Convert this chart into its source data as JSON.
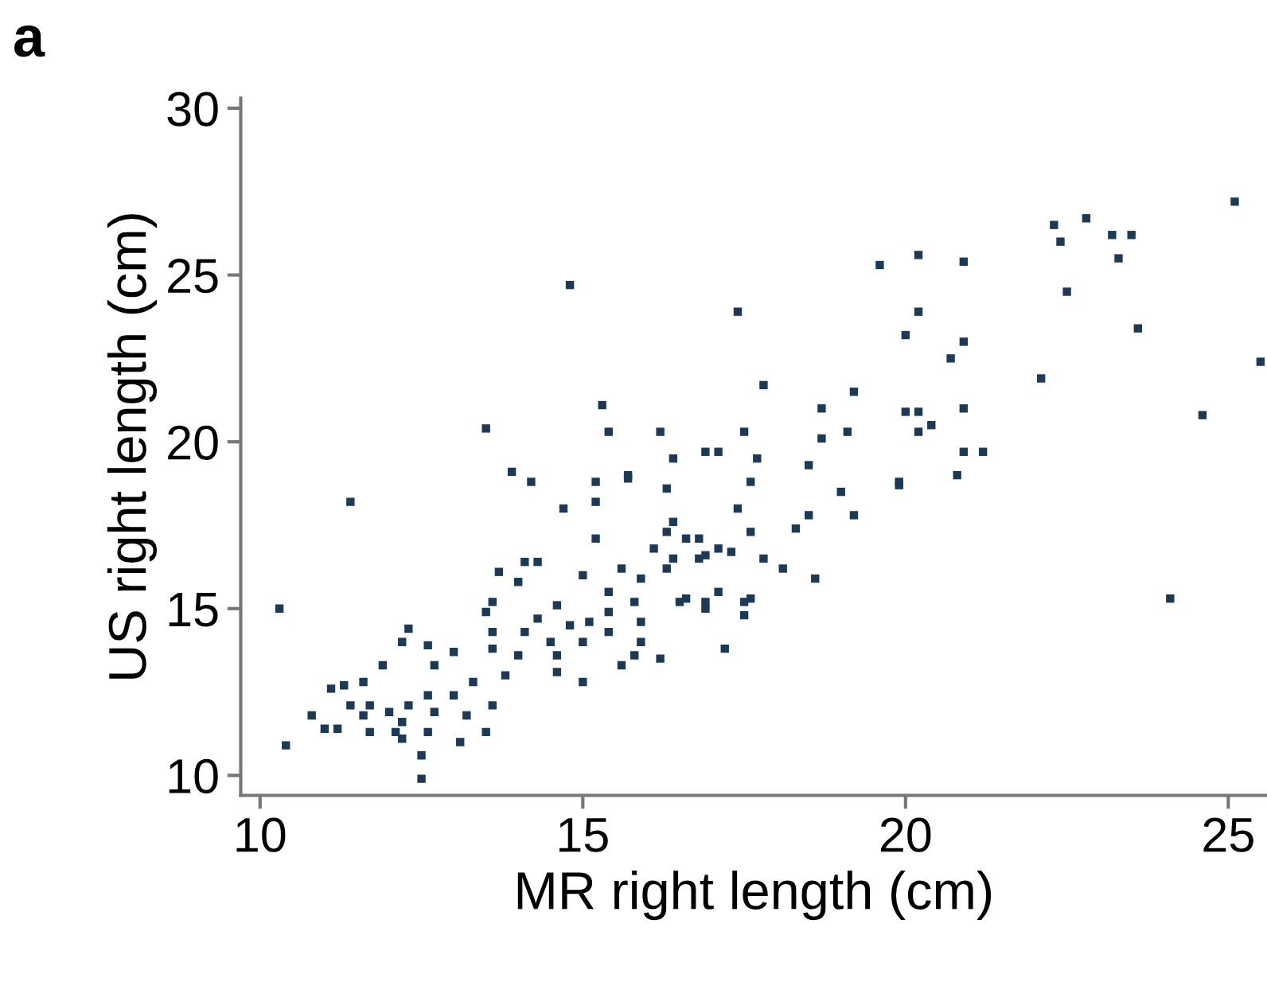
{
  "chart_data": {
    "type": "scatter",
    "title": "a",
    "xlabel": "MR right length (cm)",
    "ylabel": "US right length (cm)",
    "xlim": [
      9.7,
      25.6
    ],
    "ylim": [
      9.4,
      30.3
    ],
    "xticks": [
      10,
      15,
      20,
      25
    ],
    "yticks": [
      10,
      15,
      20,
      25,
      30
    ],
    "grid": false,
    "marker": "square",
    "series": [
      {
        "color": "#1b3a57",
        "x": [
          10.3,
          11.4,
          14.8,
          13.5,
          17.4,
          19.6,
          20.2,
          20.9,
          22.3,
          22.8,
          22.4,
          23.2,
          23.5,
          23.3,
          22.5,
          23.6,
          25.1,
          25.5,
          22.1,
          24.6,
          24.1,
          20.2,
          20.0,
          20.9,
          20.7,
          17.8,
          19.2,
          18.7,
          20.0,
          20.2,
          20.4,
          20.9,
          20.2,
          20.9,
          21.2,
          20.8,
          19.9,
          16.2,
          17.5,
          16.4,
          15.7,
          16.3,
          16.9,
          17.1,
          17.7,
          17.6,
          17.4,
          17.6,
          17.8,
          18.1,
          18.6,
          18.3,
          18.5,
          18.5,
          18.7,
          19.1,
          19.0,
          19.2,
          19.9,
          16.6,
          16.9,
          17.6,
          17.5,
          16.8,
          15.3,
          15.4,
          13.9,
          14.2,
          14.7,
          15.2,
          15.2,
          15.7,
          15.2,
          13.7,
          14.0,
          14.1,
          14.3,
          15.0,
          13.6,
          17.2,
          15.0,
          16.2,
          15.6,
          14.6,
          13.8,
          13.3,
          13.6,
          13.5,
          13.1,
          12.5,
          12.5,
          10.4,
          10.8,
          11.2,
          11.3,
          11.6,
          11.9,
          12.2,
          12.3,
          12.6,
          13.0,
          12.7,
          11.4,
          11.6,
          11.7,
          12.0,
          12.2,
          12.3,
          12.6,
          12.7,
          13.0,
          13.2,
          12.1,
          12.2,
          12.6,
          11.7,
          11.1,
          11.0,
          13.5,
          13.6,
          13.6,
          14.0,
          14.1,
          14.3,
          14.5,
          14.6,
          14.8,
          15.0,
          15.1,
          14.6,
          15.4,
          15.4,
          15.4,
          15.6,
          15.8,
          15.9,
          15.9,
          15.8,
          15.9,
          16.1,
          16.3,
          16.4,
          16.6,
          16.8,
          16.9,
          17.1,
          17.3,
          16.4,
          16.3,
          16.5,
          16.9,
          17.1,
          17.5
        ],
        "values": [
          15.0,
          18.2,
          24.7,
          20.4,
          23.9,
          25.3,
          25.6,
          25.4,
          26.5,
          26.7,
          26.0,
          26.2,
          26.2,
          25.5,
          24.5,
          23.4,
          27.2,
          22.4,
          21.9,
          20.8,
          15.3,
          23.9,
          23.2,
          23.0,
          22.5,
          21.7,
          21.5,
          21.0,
          20.9,
          20.9,
          20.5,
          21.0,
          20.3,
          19.7,
          19.7,
          19.0,
          18.8,
          20.3,
          20.3,
          19.5,
          19.0,
          18.6,
          19.7,
          19.7,
          19.5,
          18.8,
          18.0,
          17.3,
          16.5,
          16.2,
          15.9,
          17.4,
          17.8,
          19.3,
          20.1,
          20.3,
          18.5,
          17.8,
          18.7,
          15.3,
          15.0,
          15.3,
          14.8,
          17.1,
          21.1,
          20.3,
          19.1,
          18.8,
          18.0,
          18.8,
          18.2,
          18.9,
          17.1,
          16.1,
          15.8,
          16.4,
          16.4,
          16.0,
          15.2,
          13.8,
          12.8,
          13.5,
          13.3,
          13.1,
          13.0,
          12.8,
          12.1,
          11.3,
          11.0,
          10.6,
          9.9,
          10.9,
          11.8,
          11.4,
          12.7,
          12.8,
          13.3,
          14.0,
          14.4,
          13.9,
          13.7,
          13.3,
          12.1,
          11.8,
          12.1,
          11.9,
          11.6,
          12.1,
          12.4,
          11.9,
          12.4,
          11.8,
          11.3,
          11.1,
          11.3,
          11.3,
          12.6,
          11.4,
          14.9,
          14.3,
          13.8,
          13.6,
          14.3,
          14.7,
          14.0,
          15.1,
          14.5,
          14.0,
          14.6,
          13.6,
          14.3,
          14.9,
          15.5,
          16.2,
          15.2,
          14.6,
          14.0,
          13.6,
          15.9,
          16.8,
          17.3,
          17.6,
          17.1,
          16.5,
          16.6,
          16.8,
          16.7,
          16.5,
          16.2,
          15.2,
          15.2,
          15.5,
          15.2
        ]
      }
    ]
  }
}
